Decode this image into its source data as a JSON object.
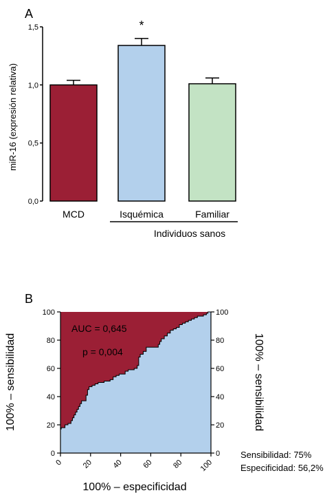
{
  "chart_data": [
    {
      "type": "bar",
      "panel_label": "A",
      "categories": [
        "MCD",
        "Isquémica",
        "Familiar"
      ],
      "values": [
        1.0,
        1.34,
        1.01
      ],
      "errors": [
        0.04,
        0.06,
        0.05
      ],
      "colors": [
        "#9b1f35",
        "#b3d0ec",
        "#c3e3c4"
      ],
      "ylabel": "miR-16 (expresión relativa)",
      "ylim": [
        0,
        1.5
      ],
      "yticks": [
        "0,0",
        "0,5",
        "1,0",
        "1,5"
      ],
      "significance": "*",
      "group_label": "Individuos sanos"
    },
    {
      "type": "area",
      "panel_label": "B",
      "xlabel": "100% – especificidad",
      "ylabel_left": "100% – sensibilidad",
      "ylabel_right": "100% – sensibilidad",
      "xlim": [
        0,
        100
      ],
      "ylim": [
        0,
        100
      ],
      "xticks": [
        "0",
        "20",
        "40",
        "60",
        "80",
        "100"
      ],
      "yticks": [
        "0",
        "20",
        "40",
        "60",
        "80",
        "100"
      ],
      "auc_text": "AUC = 0,645",
      "p_label": "p = ",
      "p_value": "0,004",
      "colors": {
        "above": "#9b1f35",
        "below": "#b3d0ec"
      },
      "roc_curve": [
        [
          0,
          0
        ],
        [
          0,
          17
        ],
        [
          0.5,
          17
        ],
        [
          0.5,
          18
        ],
        [
          3,
          18
        ],
        [
          3,
          20
        ],
        [
          5,
          20
        ],
        [
          5,
          21
        ],
        [
          7,
          21
        ],
        [
          7,
          23
        ],
        [
          8,
          23
        ],
        [
          8,
          25
        ],
        [
          9,
          25
        ],
        [
          9,
          27
        ],
        [
          10,
          27
        ],
        [
          10,
          29
        ],
        [
          11,
          29
        ],
        [
          11,
          31
        ],
        [
          12,
          31
        ],
        [
          12,
          33
        ],
        [
          13,
          33
        ],
        [
          13,
          35
        ],
        [
          14,
          35
        ],
        [
          14,
          37
        ],
        [
          17,
          37
        ],
        [
          17,
          41
        ],
        [
          18,
          41
        ],
        [
          18,
          45
        ],
        [
          19,
          45
        ],
        [
          19,
          47
        ],
        [
          21,
          47
        ],
        [
          21,
          48
        ],
        [
          23,
          48
        ],
        [
          23,
          49
        ],
        [
          25,
          49
        ],
        [
          25,
          50
        ],
        [
          29,
          50
        ],
        [
          29,
          51
        ],
        [
          33,
          51
        ],
        [
          33,
          52
        ],
        [
          35,
          52
        ],
        [
          35,
          54
        ],
        [
          37,
          54
        ],
        [
          37,
          55
        ],
        [
          39,
          55
        ],
        [
          39,
          56
        ],
        [
          43,
          56
        ],
        [
          43,
          58
        ],
        [
          45,
          58
        ],
        [
          45,
          59
        ],
        [
          49,
          59
        ],
        [
          49,
          60
        ],
        [
          51,
          60
        ],
        [
          51,
          62
        ],
        [
          52,
          62
        ],
        [
          52,
          68
        ],
        [
          53,
          68
        ],
        [
          53,
          70
        ],
        [
          55,
          70
        ],
        [
          55,
          72
        ],
        [
          57,
          72
        ],
        [
          57,
          75
        ],
        [
          65,
          75
        ],
        [
          65,
          77
        ],
        [
          66,
          77
        ],
        [
          66,
          79
        ],
        [
          67,
          79
        ],
        [
          67,
          81
        ],
        [
          69,
          81
        ],
        [
          69,
          83
        ],
        [
          71,
          83
        ],
        [
          71,
          85
        ],
        [
          73,
          85
        ],
        [
          73,
          87
        ],
        [
          75,
          87
        ],
        [
          75,
          88
        ],
        [
          77,
          88
        ],
        [
          77,
          89
        ],
        [
          79,
          89
        ],
        [
          79,
          91
        ],
        [
          81,
          91
        ],
        [
          81,
          92
        ],
        [
          83,
          92
        ],
        [
          83,
          93
        ],
        [
          85,
          93
        ],
        [
          85,
          94
        ],
        [
          87,
          94
        ],
        [
          87,
          95
        ],
        [
          89,
          95
        ],
        [
          89,
          96
        ],
        [
          91,
          96
        ],
        [
          91,
          97
        ],
        [
          95,
          97
        ],
        [
          95,
          98
        ],
        [
          97,
          98
        ],
        [
          97,
          99
        ],
        [
          98,
          99
        ],
        [
          98,
          100
        ],
        [
          100,
          100
        ]
      ],
      "sensitivity_text": "Sensibilidad: 75%",
      "specificity_text": "Especificidad: 56,2%"
    }
  ]
}
